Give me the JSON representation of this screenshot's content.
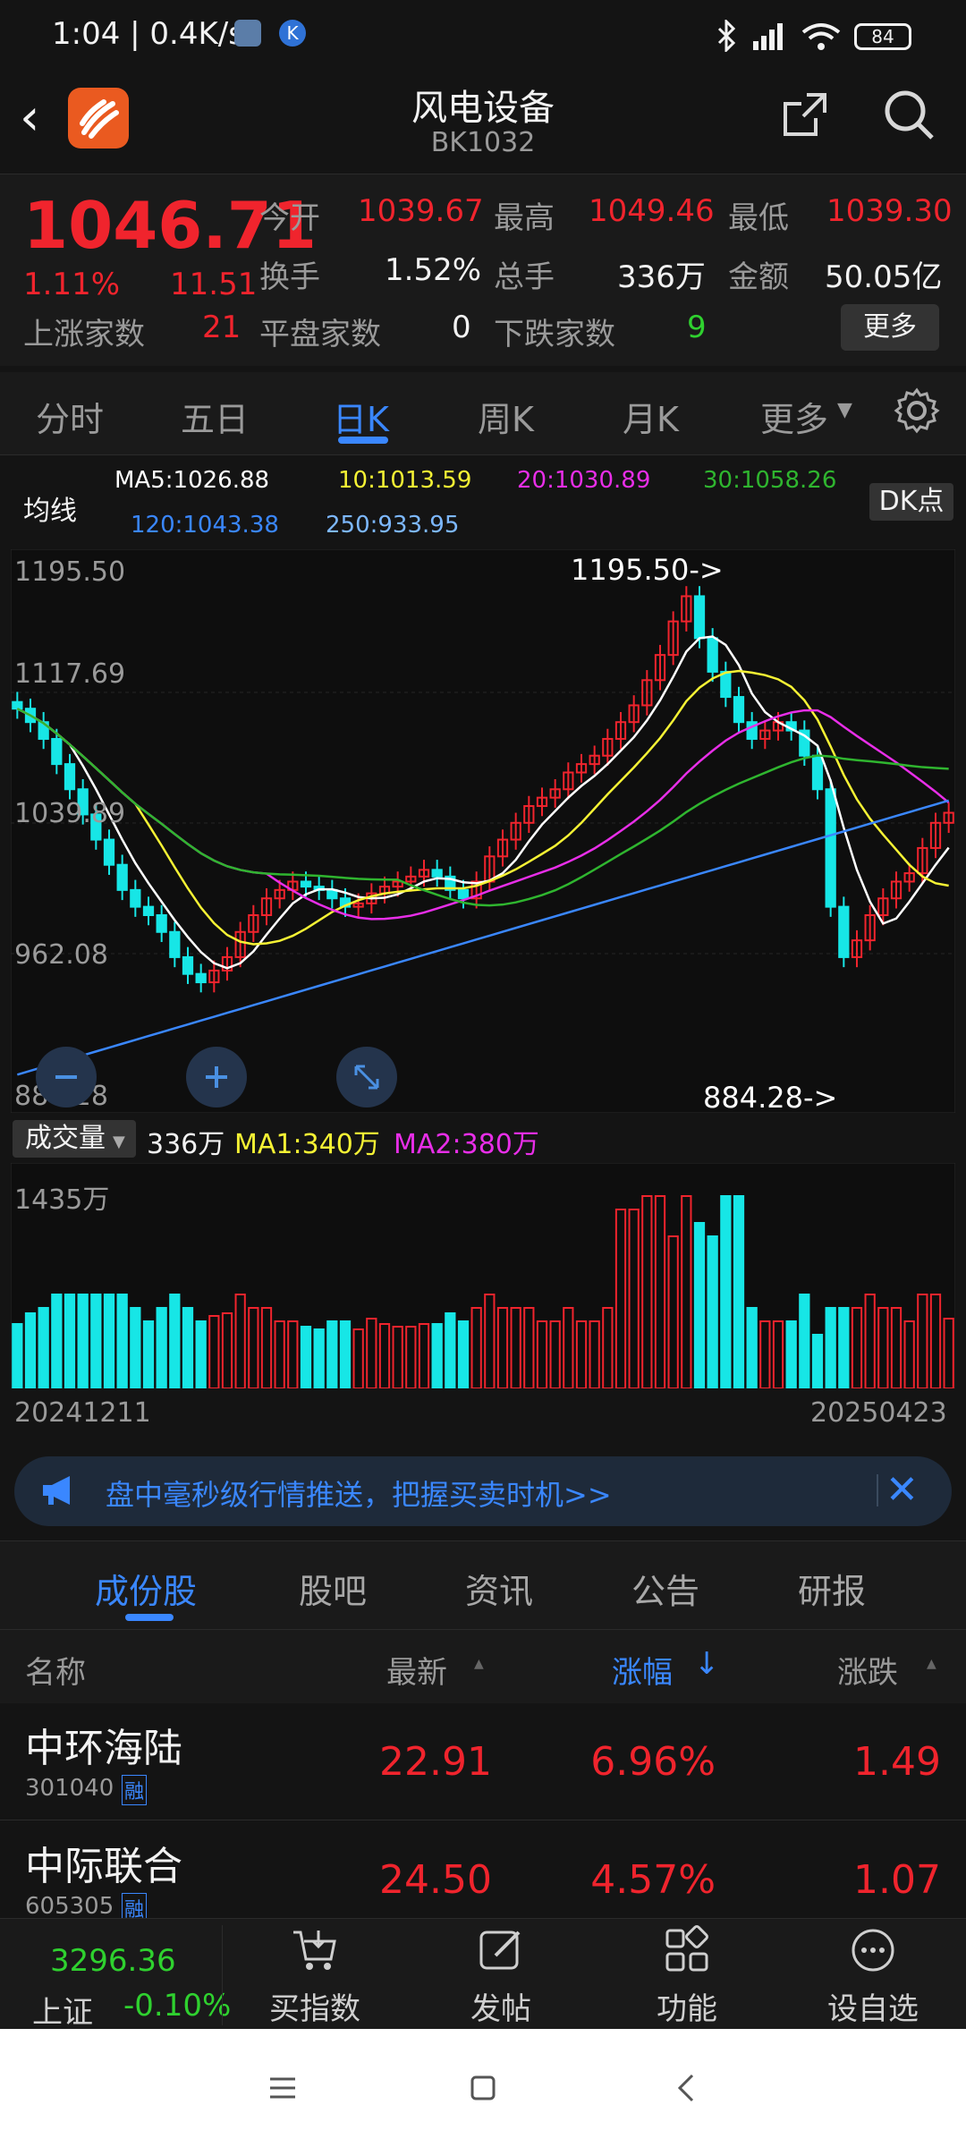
{
  "status": {
    "time": "1:04 | 0.4K/s",
    "battery": "84"
  },
  "header": {
    "title": "风电设备",
    "code": "BK1032"
  },
  "quote": {
    "price": "1046.71",
    "change_pct": "1.11%",
    "change": "11.51",
    "open_label": "今开",
    "open": "1039.67",
    "high_label": "最高",
    "high": "1049.46",
    "low_label": "最低",
    "low": "1039.30",
    "turnover_label": "换手",
    "turnover": "1.52%",
    "volume_label": "总手",
    "volume": "336万",
    "amount_label": "金额",
    "amount": "50.05亿",
    "up_label": "上涨家数",
    "up": "21",
    "flat_label": "平盘家数",
    "flat": "0",
    "down_label": "下跌家数",
    "down": "9",
    "more": "更多"
  },
  "period_tabs": [
    "分时",
    "五日",
    "日K",
    "周K",
    "月K",
    "更多"
  ],
  "active_tab": "日K",
  "ma": {
    "label": "均线",
    "ma5": "MA5:1026.88",
    "ma10": "10:1013.59",
    "ma20": "20:1030.89",
    "ma30": "30:1058.26",
    "ma120": "120:1043.38",
    "ma250": "250:933.95",
    "dk": "DK点"
  },
  "colors": {
    "up": "#f0242d",
    "down": "#17e6e6",
    "ma5": "#ffffff",
    "ma10": "#f5f234",
    "ma20": "#e82ee8",
    "ma30": "#2fb52f",
    "ma120": "#3a87ff",
    "ma250": "#7db8ff",
    "accent": "#3a87ff"
  },
  "chart_data": {
    "type": "candlestick",
    "y_ticks": [
      "1195.50",
      "1117.69",
      "1039.89",
      "962.08",
      "884.28"
    ],
    "ylim": [
      884.28,
      1195.5
    ],
    "max_label": "1195.50->",
    "min_label": "884.28->",
    "x_start": "20241211",
    "x_end": "20250423",
    "close": [
      1108,
      1100,
      1090,
      1075,
      1060,
      1045,
      1030,
      1015,
      1000,
      990,
      985,
      975,
      960,
      950,
      945,
      952,
      960,
      975,
      985,
      995,
      1000,
      1005,
      1002,
      1000,
      995,
      990,
      992,
      998,
      1002,
      1005,
      1008,
      1012,
      1008,
      1000,
      995,
      1005,
      1020,
      1030,
      1040,
      1050,
      1055,
      1060,
      1070,
      1075,
      1080,
      1090,
      1100,
      1110,
      1125,
      1140,
      1160,
      1175,
      1150,
      1130,
      1115,
      1100,
      1090,
      1095,
      1100,
      1095,
      1080,
      1060,
      990,
      960,
      970,
      985,
      995,
      1005,
      1010,
      1025,
      1040,
      1046
    ],
    "volume_label": "成交量",
    "volume": "336万",
    "ma1": "MA1:340万",
    "ma2": "MA2:380万",
    "vol_max": "1435万"
  },
  "banner": {
    "text": "盘中毫秒级行情推送，把握买卖时机>>"
  },
  "lower_tabs": [
    "成份股",
    "股吧",
    "资讯",
    "公告",
    "研报"
  ],
  "table": {
    "headers": {
      "name": "名称",
      "latest": "最新",
      "pct": "涨幅",
      "chg": "涨跌"
    },
    "rows": [
      {
        "name": "中环海陆",
        "code": "301040",
        "tag": "融",
        "latest": "22.91",
        "pct": "6.96%",
        "chg": "1.49"
      },
      {
        "name": "中际联合",
        "code": "605305",
        "tag": "融",
        "latest": "24.50",
        "pct": "4.57%",
        "chg": "1.07"
      }
    ]
  },
  "bottom_nav": {
    "index_value": "3296.36",
    "index_name": "上证",
    "index_chg": "-0.10%",
    "items": [
      "买指数",
      "发帖",
      "功能",
      "设自选"
    ]
  }
}
